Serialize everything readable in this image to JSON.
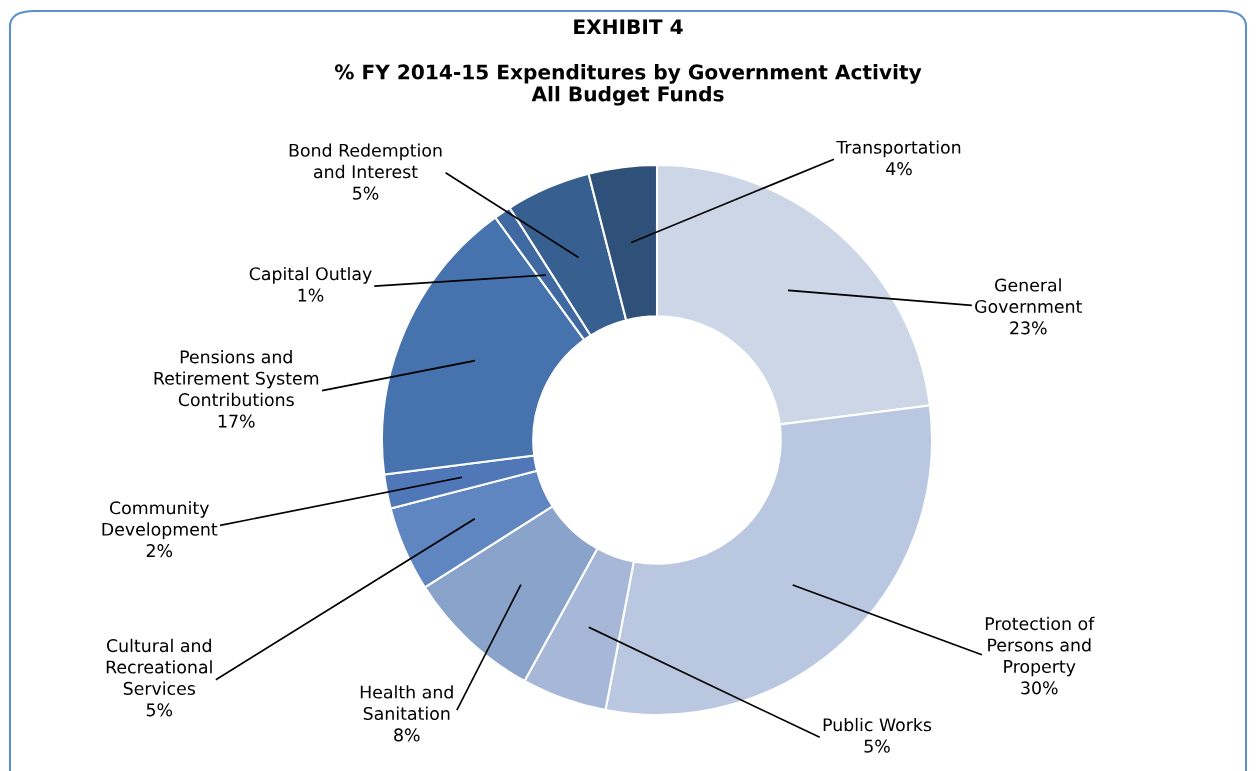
{
  "chart_data": {
    "type": "donut",
    "title": "EXHIBIT 4",
    "subtitle": "% FY 2014-15 Expenditures by Government Activity\nAll Budget Funds",
    "categories": [
      "General\nGovernment",
      "Protection of\nPersons and\nProperty",
      "Public Works",
      "Health and\nSanitation",
      "Cultural and\nRecreational\nServices",
      "Community\nDevelopment",
      "Pensions and\nRetirement System\nContributions",
      "Capital Outlay",
      "Bond Redemption\nand Interest",
      "Transportation"
    ],
    "values": [
      23,
      30,
      5,
      8,
      5,
      2,
      17,
      1,
      5,
      4
    ],
    "value_labels": [
      "23%",
      "30%",
      "5%",
      "8%",
      "5%",
      "2%",
      "17%",
      "1%",
      "5%",
      "4%"
    ],
    "colors": [
      "#cdd6e7",
      "#b9c7e0",
      "#a6b7d7",
      "#8aa3cb",
      "#5f86c1",
      "#5078b8",
      "#4672ad",
      "#3f69a0",
      "#375f90",
      "#2f5078"
    ]
  }
}
